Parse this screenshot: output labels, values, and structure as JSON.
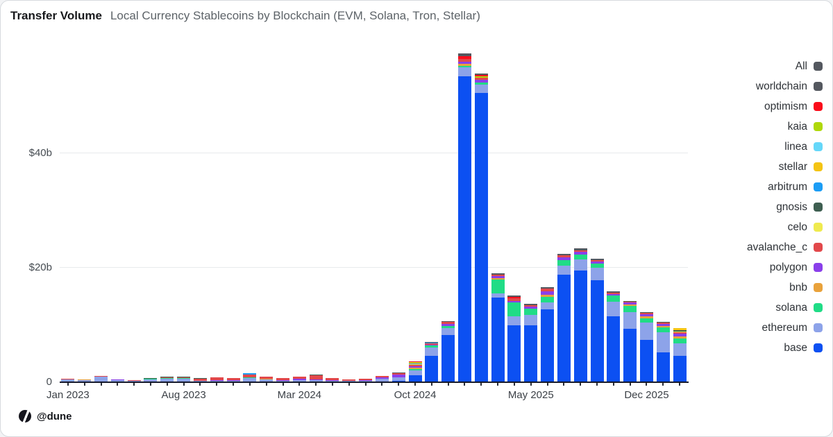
{
  "header": {
    "title": "Transfer Volume",
    "subtitle": "Local Currency Stablecoins by Blockchain (EVM, Solana, Tron, Stellar)"
  },
  "footer": {
    "handle": "@dune",
    "logo_icon": "dune-logo"
  },
  "legend": [
    {
      "label": "All",
      "color": "#54585F"
    },
    {
      "label": "worldchain",
      "color": "#54585F"
    },
    {
      "label": "optimism",
      "color": "#FA0C1B"
    },
    {
      "label": "kaia",
      "color": "#AFD80A"
    },
    {
      "label": "linea",
      "color": "#65D7F9"
    },
    {
      "label": "stellar",
      "color": "#F4C414"
    },
    {
      "label": "arbitrum",
      "color": "#1C9DF5"
    },
    {
      "label": "gnosis",
      "color": "#3E5F51"
    },
    {
      "label": "celo",
      "color": "#EFEA4F"
    },
    {
      "label": "avalanche_c",
      "color": "#E2484B"
    },
    {
      "label": "polygon",
      "color": "#8A3FEA"
    },
    {
      "label": "bnb",
      "color": "#E9A23B"
    },
    {
      "label": "solana",
      "color": "#20DC86"
    },
    {
      "label": "ethereum",
      "color": "#8DA3E9"
    },
    {
      "label": "base",
      "color": "#0C50F2"
    }
  ],
  "chart_data": {
    "type": "bar",
    "stacked": true,
    "title": "Transfer Volume",
    "subtitle": "Local Currency Stablecoins by Blockchain (EVM, Solana, Tron, Stellar)",
    "unit": "$ billions",
    "grid": "horizontal",
    "legend_position": "right",
    "ylim": [
      0,
      59.4
    ],
    "yticks": [
      {
        "label": "$40b",
        "value": 40
      },
      {
        "label": "$20b",
        "value": 20
      },
      {
        "label": "0",
        "value": 0
      }
    ],
    "xtick_positions": [
      0,
      7,
      14,
      21,
      28,
      35
    ],
    "xtick_labels": [
      "Jan 2023",
      "Aug 2023",
      "Mar 2024",
      "Oct 2024",
      "May 2025",
      "Dec 2025"
    ],
    "categories": [
      "Jan 2023",
      "Feb 2023",
      "Mar 2023",
      "Apr 2023",
      "May 2023",
      "Jun 2023",
      "Jul 2023",
      "Aug 2023",
      "Sep 2023",
      "Oct 2023",
      "Nov 2023",
      "Dec 2023",
      "Jan 2024",
      "Feb 2024",
      "Mar 2024",
      "Apr 2024",
      "May 2024",
      "Jun 2024",
      "Jul 2024",
      "Aug 2024",
      "Sep 2024",
      "Oct 2024",
      "Nov 2024",
      "Dec 2024",
      "Jan 2025",
      "Feb 2025",
      "Mar 2025",
      "Apr 2025",
      "May 2025",
      "Jun 2025",
      "Jul 2025",
      "Aug 2025",
      "Sep 2025",
      "Oct 2025",
      "Nov 2025",
      "Dec 2025",
      "Jan 2026",
      "Feb 2026"
    ],
    "series": [
      {
        "name": "base",
        "color": "#0C50F2",
        "values": [
          0,
          0,
          0,
          0,
          0,
          0,
          0,
          0,
          0,
          0,
          0,
          0,
          0,
          0,
          0,
          0,
          0,
          0,
          0,
          0,
          0.2,
          1.2,
          4.6,
          8.2,
          53.5,
          50.5,
          14.8,
          10,
          10,
          12.7,
          18.8,
          19.5,
          17.8,
          11.5,
          9.3,
          7.4,
          5.2,
          4.6
        ]
      },
      {
        "name": "ethereum",
        "color": "#8DA3E9",
        "values": [
          0.45,
          0.4,
          0.95,
          0.4,
          0.3,
          0.5,
          0.6,
          0.6,
          0.25,
          0.3,
          0.3,
          0.7,
          0.45,
          0.3,
          0.35,
          0.35,
          0.3,
          0.25,
          0.3,
          0.55,
          0.7,
          0.9,
          1.5,
          1.3,
          1.5,
          1.5,
          0.7,
          1.5,
          1.8,
          1.2,
          1.6,
          2,
          2.2,
          2.6,
          3,
          3,
          3.5,
          2.2
        ]
      },
      {
        "name": "solana",
        "color": "#20DC86",
        "values": [
          0,
          0,
          0,
          0,
          0,
          0.05,
          0.1,
          0.15,
          0.05,
          0,
          0,
          0.1,
          0,
          0,
          0,
          0,
          0,
          0,
          0,
          0,
          0,
          0.25,
          0.3,
          0.3,
          0.3,
          0.4,
          2.4,
          2.4,
          1,
          1,
          1,
          0.8,
          0.7,
          1,
          1,
          0.8,
          0.85,
          0.85
        ]
      },
      {
        "name": "bnb",
        "color": "#E9A23B",
        "values": [
          0.05,
          0.05,
          0,
          0,
          0,
          0.1,
          0,
          0,
          0,
          0,
          0,
          0,
          0.1,
          0,
          0,
          0,
          0,
          0,
          0,
          0,
          0,
          0.2,
          0,
          0,
          0.3,
          0,
          0.3,
          0,
          0,
          0.4,
          0,
          0,
          0,
          0,
          0.3,
          0.3,
          0.3,
          0.4
        ]
      },
      {
        "name": "polygon",
        "color": "#8A3FEA",
        "values": [
          0,
          0,
          0.08,
          0.05,
          0,
          0,
          0,
          0,
          0,
          0.05,
          0.05,
          0,
          0,
          0.05,
          0.3,
          0.15,
          0.05,
          0.05,
          0.05,
          0.35,
          0.4,
          0.25,
          0.2,
          0.4,
          0.4,
          0.5,
          0.4,
          0.3,
          0.4,
          0.6,
          0.4,
          0.5,
          0.4,
          0.3,
          0.3,
          0.4,
          0.35,
          0.4
        ]
      },
      {
        "name": "avalanche_c",
        "color": "#E2484B",
        "values": [
          0.05,
          0.05,
          0.07,
          0.05,
          0.05,
          0,
          0.2,
          0.15,
          0.35,
          0.45,
          0.35,
          0.5,
          0.4,
          0.35,
          0.3,
          0.75,
          0.35,
          0.2,
          0.25,
          0.15,
          0.3,
          0.25,
          0.2,
          0.3,
          0.5,
          0.3,
          0.2,
          0.5,
          0.3,
          0.5,
          0.4,
          0.3,
          0.3,
          0.3,
          0.2,
          0.2,
          0.2,
          0.3
        ]
      },
      {
        "name": "celo",
        "color": "#EFEA4F",
        "values": [
          0,
          0,
          0,
          0,
          0,
          0,
          0,
          0,
          0,
          0,
          0,
          0,
          0,
          0,
          0,
          0,
          0,
          0,
          0,
          0,
          0,
          0.1,
          0,
          0,
          0,
          0,
          0,
          0,
          0,
          0,
          0,
          0,
          0,
          0,
          0,
          0,
          0,
          0.15
        ]
      },
      {
        "name": "gnosis",
        "color": "#3E5F51",
        "values": [
          0.05,
          0,
          0,
          0,
          0,
          0.05,
          0.1,
          0.1,
          0.05,
          0.05,
          0,
          0.1,
          0.05,
          0,
          0.05,
          0.05,
          0,
          0,
          0,
          0.05,
          0,
          0,
          0,
          0,
          0,
          0,
          0,
          0,
          0,
          0,
          0,
          0,
          0,
          0,
          0.1,
          0.1,
          0.1,
          0.2
        ]
      },
      {
        "name": "arbitrum",
        "color": "#1C9DF5",
        "values": [
          0,
          0,
          0,
          0,
          0,
          0,
          0,
          0,
          0,
          0,
          0,
          0.2,
          0,
          0,
          0,
          0,
          0,
          0,
          0,
          0,
          0,
          0.1,
          0.1,
          0,
          0,
          0,
          0,
          0,
          0,
          0,
          0,
          0,
          0,
          0,
          0,
          0,
          0,
          0
        ]
      },
      {
        "name": "stellar",
        "color": "#F4C414",
        "values": [
          0,
          0,
          0,
          0,
          0,
          0,
          0,
          0,
          0,
          0,
          0,
          0,
          0,
          0,
          0,
          0,
          0,
          0,
          0,
          0,
          0,
          0.1,
          0,
          0,
          0,
          0,
          0,
          0,
          0,
          0,
          0,
          0,
          0,
          0,
          0,
          0,
          0,
          0.4
        ]
      },
      {
        "name": "linea",
        "color": "#65D7F9",
        "values": [
          0,
          0,
          0,
          0,
          0,
          0,
          0,
          0,
          0,
          0,
          0,
          0,
          0,
          0,
          0,
          0,
          0,
          0,
          0,
          0,
          0,
          0.1,
          0,
          0,
          0,
          0,
          0,
          0,
          0,
          0,
          0,
          0,
          0,
          0,
          0,
          0,
          0,
          0
        ]
      },
      {
        "name": "kaia",
        "color": "#AFD80A",
        "values": [
          0,
          0,
          0,
          0,
          0,
          0,
          0,
          0,
          0,
          0,
          0,
          0,
          0,
          0,
          0,
          0,
          0,
          0,
          0,
          0,
          0,
          0.05,
          0,
          0,
          0,
          0.3,
          0,
          0,
          0,
          0,
          0,
          0,
          0,
          0,
          0,
          0,
          0,
          0
        ]
      },
      {
        "name": "optimism",
        "color": "#FA0C1B",
        "values": [
          0,
          0,
          0,
          0,
          0,
          0,
          0,
          0,
          0,
          0,
          0,
          0,
          0,
          0,
          0,
          0,
          0,
          0,
          0,
          0,
          0,
          0.1,
          0,
          0,
          0.5,
          0.2,
          0,
          0.2,
          0,
          0,
          0,
          0,
          0,
          0,
          0,
          0,
          0,
          0
        ]
      },
      {
        "name": "worldchain",
        "color": "#54585F",
        "values": [
          0,
          0,
          0,
          0,
          0,
          0,
          0,
          0,
          0,
          0,
          0,
          0,
          0,
          0,
          0,
          0,
          0,
          0,
          0,
          0,
          0.1,
          0,
          0.1,
          0.2,
          0.5,
          0.3,
          0.2,
          0.3,
          0.2,
          0.2,
          0.2,
          0.3,
          0.2,
          0.2,
          0,
          0,
          0,
          0
        ]
      }
    ]
  }
}
